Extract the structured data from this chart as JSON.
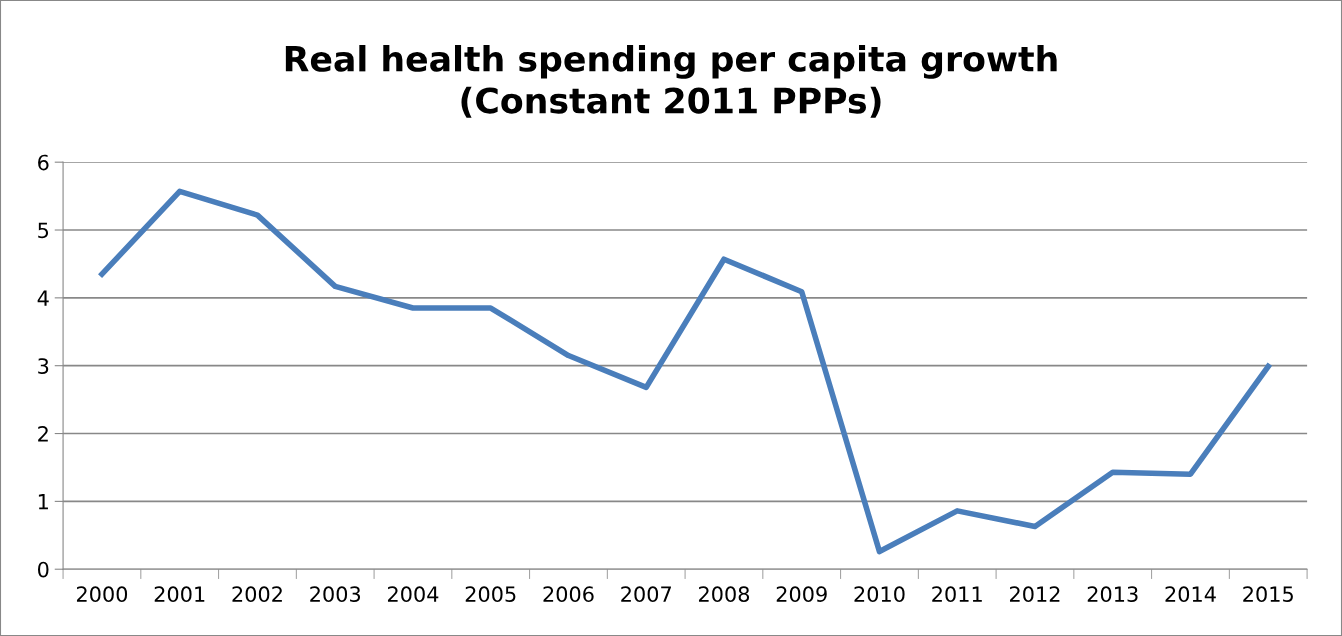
{
  "chart_data": {
    "type": "line",
    "title": "Real health spending per capita growth\n(Constant 2011 PPPs)",
    "categories": [
      "2000",
      "2001",
      "2002",
      "2003",
      "2004",
      "2005",
      "2006",
      "2007",
      "2008",
      "2009",
      "2010",
      "2011",
      "2012",
      "2013",
      "2014",
      "2015"
    ],
    "series": [
      {
        "color": "#4a7ebb",
        "values": [
          4.35,
          5.57,
          5.22,
          4.17,
          3.85,
          3.85,
          3.15,
          2.68,
          4.57,
          4.09,
          0.26,
          0.86,
          0.63,
          1.43,
          1.4,
          2.99
        ]
      }
    ],
    "ylim": [
      0,
      6
    ],
    "yticks": [
      0,
      1,
      2,
      3,
      4,
      5,
      6
    ],
    "grid": "y",
    "legend": false,
    "marker": "none",
    "line_style": "solid"
  }
}
